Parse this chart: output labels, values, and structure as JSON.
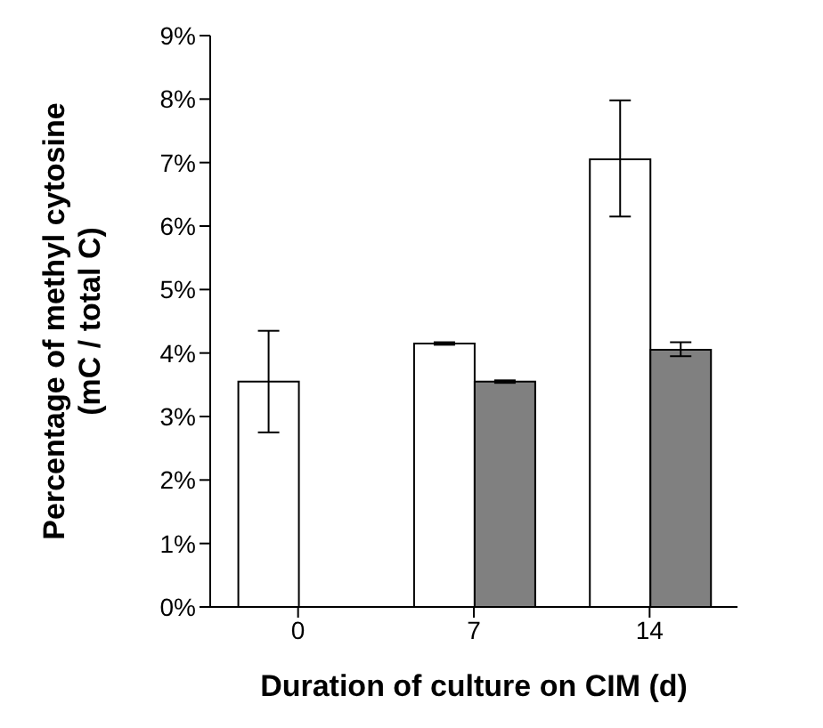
{
  "chart_data": {
    "type": "bar",
    "xlabel": "Duration of culture on CIM (d)",
    "ylabel": "Percentage of methyl cytosine\n(mC / total C)",
    "categories": [
      "0",
      "7",
      "14"
    ],
    "series": [
      {
        "color": "#ffffff",
        "values": [
          3.55,
          4.15,
          7.05
        ],
        "errors": [
          [
            2.75,
            4.35
          ],
          [
            4.13,
            4.17
          ],
          [
            6.15,
            7.98
          ]
        ]
      },
      {
        "color": "#808080",
        "values": [
          0,
          3.55,
          4.05
        ],
        "errors": [
          null,
          [
            3.53,
            3.57
          ],
          [
            3.95,
            4.17
          ]
        ]
      }
    ],
    "ylim": [
      0,
      9
    ],
    "yticks": [
      {
        "value": 0,
        "label": "0%"
      },
      {
        "value": 1,
        "label": "1%"
      },
      {
        "value": 2,
        "label": "2%"
      },
      {
        "value": 3,
        "label": "3%"
      },
      {
        "value": 4,
        "label": "4%"
      },
      {
        "value": 5,
        "label": "5%"
      },
      {
        "value": 6,
        "label": "6%"
      },
      {
        "value": 7,
        "label": "7%"
      },
      {
        "value": 8,
        "label": "8%"
      },
      {
        "value": 9,
        "label": "9%"
      }
    ],
    "grid": false,
    "legend": false
  }
}
